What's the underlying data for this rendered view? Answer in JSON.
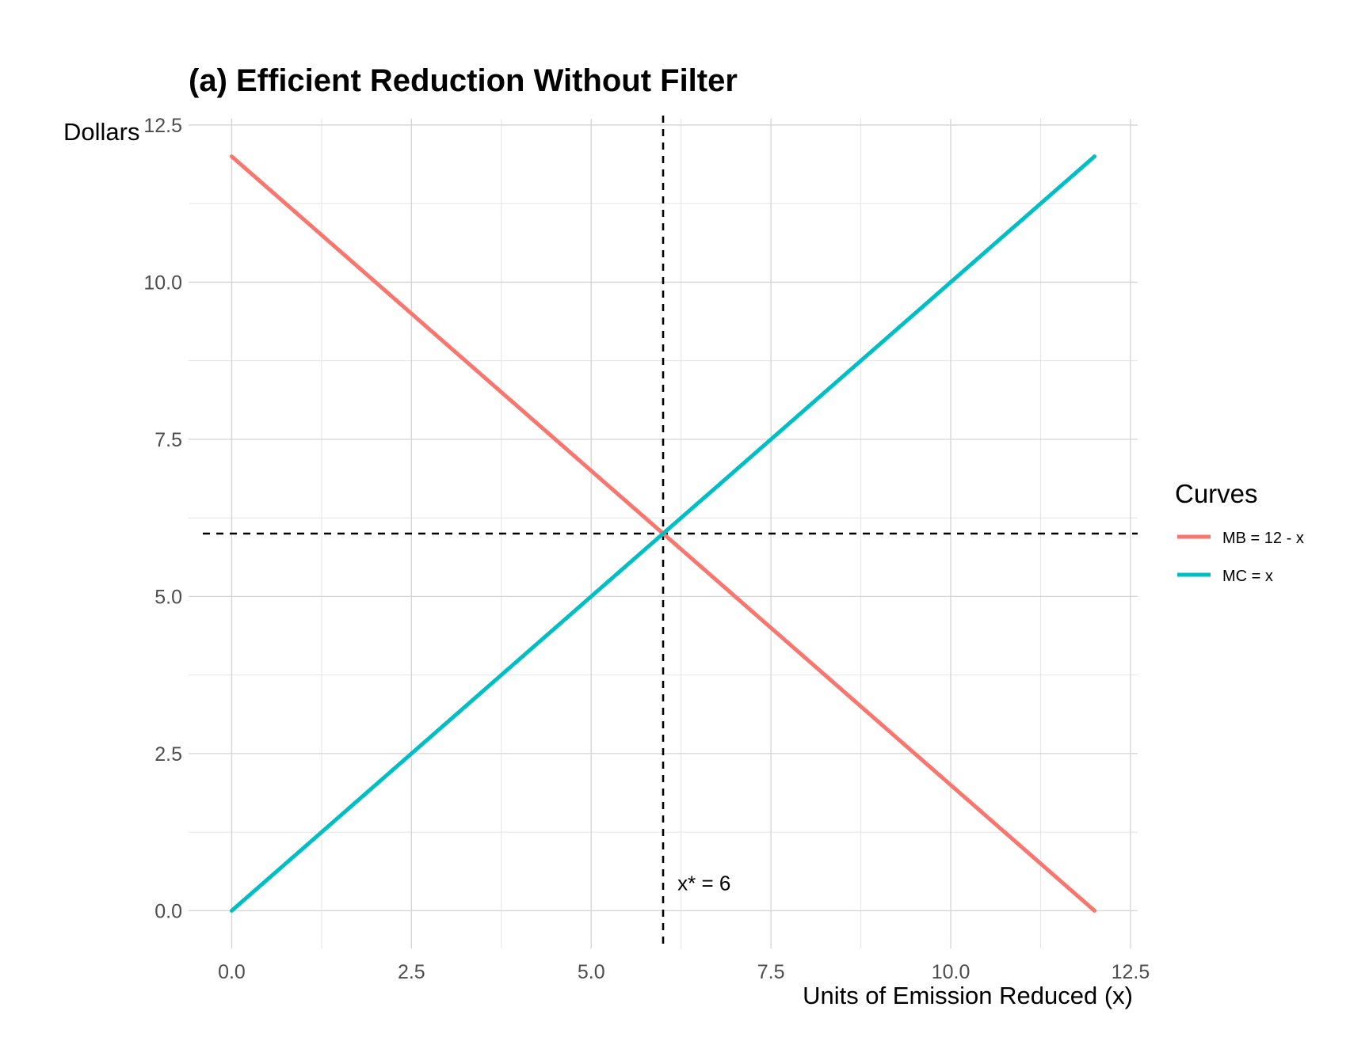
{
  "chart_data": {
    "type": "line",
    "title": "(a) Efficient Reduction Without Filter",
    "xlabel": "Units of Emission Reduced (x)",
    "ylabel": "Dollars",
    "xlim": [
      -0.6,
      12.6
    ],
    "ylim": [
      -0.6,
      12.6
    ],
    "x_ticks": [
      0.0,
      2.5,
      5.0,
      7.5,
      10.0,
      12.5
    ],
    "x_tick_labels": [
      "0.0",
      "2.5",
      "5.0",
      "7.5",
      "10.0",
      "12.5"
    ],
    "y_ticks": [
      0.0,
      2.5,
      5.0,
      7.5,
      10.0,
      12.5
    ],
    "y_tick_labels": [
      "0.0",
      "2.5",
      "5.0",
      "7.5",
      "10.0",
      "12.5"
    ],
    "grid": true,
    "legend": {
      "title": "Curves",
      "position": "right"
    },
    "series": [
      {
        "name": "MB = 12 - x",
        "color": "#F8766D",
        "x": [
          0,
          12
        ],
        "y": [
          12,
          0
        ]
      },
      {
        "name": "MC = x",
        "color": "#00BFC4",
        "x": [
          0,
          12
        ],
        "y": [
          0,
          12
        ]
      }
    ],
    "reference_lines": {
      "vertical_x": 6,
      "horizontal_y": 6,
      "style": "dashed",
      "color": "#000000"
    },
    "annotations": [
      {
        "text": "x* = 6",
        "x": 6.2,
        "y": 0.45
      }
    ]
  }
}
